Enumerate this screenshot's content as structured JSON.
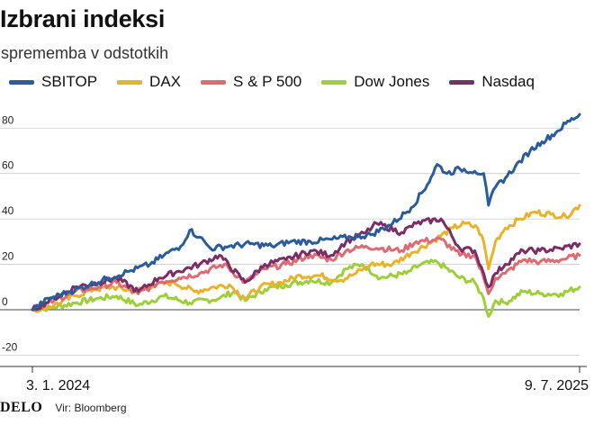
{
  "chart_data": {
    "type": "line",
    "title": "Izbrani indeksi",
    "subtitle": "sprememba v odstotkih",
    "x_range": [
      "3. 1. 2024",
      "9. 7. 2025"
    ],
    "x_tick_labels": [
      "3. 1. 2024",
      "9. 7. 2025"
    ],
    "ylim": [
      -25,
      92
    ],
    "y_ticks": [
      -20,
      0,
      20,
      40,
      60,
      80
    ],
    "grid": true,
    "legend_placement": "top",
    "series": [
      {
        "name": "SBITOP",
        "color": "#2b5c9a",
        "points": [
          [
            "2024-01-03",
            0
          ],
          [
            "2024-01-20",
            5
          ],
          [
            "2024-02-10",
            8
          ],
          [
            "2024-03-01",
            11
          ],
          [
            "2024-03-20",
            14
          ],
          [
            "2024-04-10",
            17
          ],
          [
            "2024-05-01",
            20
          ],
          [
            "2024-05-15",
            24
          ],
          [
            "2024-06-01",
            28
          ],
          [
            "2024-06-10",
            35
          ],
          [
            "2024-06-20",
            32
          ],
          [
            "2024-07-01",
            27
          ],
          [
            "2024-07-20",
            28
          ],
          [
            "2024-08-10",
            29
          ],
          [
            "2024-09-01",
            28
          ],
          [
            "2024-09-20",
            30
          ],
          [
            "2024-10-10",
            30
          ],
          [
            "2024-11-01",
            31
          ],
          [
            "2024-11-20",
            32
          ],
          [
            "2024-12-10",
            33
          ],
          [
            "2025-01-01",
            38
          ],
          [
            "2025-01-20",
            45
          ],
          [
            "2025-02-05",
            55
          ],
          [
            "2025-02-15",
            64
          ],
          [
            "2025-02-25",
            60
          ],
          [
            "2025-03-10",
            62
          ],
          [
            "2025-03-25",
            61
          ],
          [
            "2025-04-03",
            60
          ],
          [
            "2025-04-08",
            46
          ],
          [
            "2025-04-15",
            54
          ],
          [
            "2025-04-25",
            58
          ],
          [
            "2025-05-05",
            63
          ],
          [
            "2025-05-20",
            70
          ],
          [
            "2025-06-01",
            74
          ],
          [
            "2025-06-15",
            78
          ],
          [
            "2025-06-25",
            82
          ],
          [
            "2025-07-09",
            86
          ]
        ]
      },
      {
        "name": "DAX",
        "color": "#e8b32c",
        "points": [
          [
            "2024-01-03",
            0
          ],
          [
            "2024-01-25",
            2
          ],
          [
            "2024-02-15",
            6
          ],
          [
            "2024-03-05",
            9
          ],
          [
            "2024-03-25",
            10
          ],
          [
            "2024-04-15",
            8
          ],
          [
            "2024-05-05",
            11
          ],
          [
            "2024-05-25",
            12
          ],
          [
            "2024-06-15",
            8
          ],
          [
            "2024-07-05",
            10
          ],
          [
            "2024-07-20",
            11
          ],
          [
            "2024-08-05",
            5
          ],
          [
            "2024-08-20",
            10
          ],
          [
            "2024-09-10",
            12
          ],
          [
            "2024-09-30",
            15
          ],
          [
            "2024-10-20",
            15
          ],
          [
            "2024-11-10",
            13
          ],
          [
            "2024-11-25",
            16
          ],
          [
            "2024-12-10",
            20
          ],
          [
            "2025-01-01",
            20
          ],
          [
            "2025-01-20",
            25
          ],
          [
            "2025-02-10",
            30
          ],
          [
            "2025-03-03",
            36
          ],
          [
            "2025-03-15",
            38
          ],
          [
            "2025-03-28",
            36
          ],
          [
            "2025-04-03",
            30
          ],
          [
            "2025-04-08",
            18
          ],
          [
            "2025-04-15",
            30
          ],
          [
            "2025-04-25",
            36
          ],
          [
            "2025-05-10",
            40
          ],
          [
            "2025-05-25",
            43
          ],
          [
            "2025-06-10",
            42
          ],
          [
            "2025-06-25",
            41
          ],
          [
            "2025-07-09",
            46
          ]
        ]
      },
      {
        "name": "S & P 500",
        "color": "#e06a73",
        "points": [
          [
            "2024-01-03",
            0
          ],
          [
            "2024-01-25",
            4
          ],
          [
            "2024-02-15",
            8
          ],
          [
            "2024-03-10",
            10
          ],
          [
            "2024-03-28",
            12
          ],
          [
            "2024-04-19",
            7
          ],
          [
            "2024-05-10",
            12
          ],
          [
            "2024-05-30",
            14
          ],
          [
            "2024-06-20",
            16
          ],
          [
            "2024-07-15",
            20
          ],
          [
            "2024-08-05",
            12
          ],
          [
            "2024-08-25",
            18
          ],
          [
            "2024-09-15",
            20
          ],
          [
            "2024-10-10",
            24
          ],
          [
            "2024-10-31",
            22
          ],
          [
            "2024-11-15",
            26
          ],
          [
            "2024-12-05",
            28
          ],
          [
            "2024-12-20",
            27
          ],
          [
            "2025-01-10",
            26
          ],
          [
            "2025-01-25",
            30
          ],
          [
            "2025-02-19",
            31
          ],
          [
            "2025-03-10",
            24
          ],
          [
            "2025-03-25",
            24
          ],
          [
            "2025-04-03",
            14
          ],
          [
            "2025-04-08",
            7
          ],
          [
            "2025-04-15",
            14
          ],
          [
            "2025-04-25",
            16
          ],
          [
            "2025-05-13",
            22
          ],
          [
            "2025-05-30",
            21
          ],
          [
            "2025-06-20",
            22
          ],
          [
            "2025-07-09",
            24
          ]
        ]
      },
      {
        "name": "Dow Jones",
        "color": "#9ccf3a",
        "points": [
          [
            "2024-01-03",
            0
          ],
          [
            "2024-01-25",
            1
          ],
          [
            "2024-02-15",
            3
          ],
          [
            "2024-03-10",
            5
          ],
          [
            "2024-03-28",
            6
          ],
          [
            "2024-04-19",
            2
          ],
          [
            "2024-05-15",
            6
          ],
          [
            "2024-06-10",
            3
          ],
          [
            "2024-07-10",
            5
          ],
          [
            "2024-07-25",
            8
          ],
          [
            "2024-08-05",
            4
          ],
          [
            "2024-08-25",
            9
          ],
          [
            "2024-09-15",
            11
          ],
          [
            "2024-10-10",
            13
          ],
          [
            "2024-10-31",
            12
          ],
          [
            "2024-11-15",
            18
          ],
          [
            "2024-12-01",
            20
          ],
          [
            "2024-12-20",
            14
          ],
          [
            "2025-01-15",
            16
          ],
          [
            "2025-01-30",
            20
          ],
          [
            "2025-02-15",
            21
          ],
          [
            "2025-03-10",
            14
          ],
          [
            "2025-03-25",
            12
          ],
          [
            "2025-04-03",
            5
          ],
          [
            "2025-04-08",
            -3
          ],
          [
            "2025-04-15",
            4
          ],
          [
            "2025-04-25",
            3
          ],
          [
            "2025-05-13",
            8
          ],
          [
            "2025-05-30",
            7
          ],
          [
            "2025-06-20",
            7
          ],
          [
            "2025-07-09",
            10
          ]
        ]
      },
      {
        "name": "Nasdaq",
        "color": "#7a2e66",
        "points": [
          [
            "2024-01-03",
            0
          ],
          [
            "2024-01-25",
            5
          ],
          [
            "2024-02-15",
            10
          ],
          [
            "2024-03-10",
            12
          ],
          [
            "2024-03-28",
            14
          ],
          [
            "2024-04-19",
            8
          ],
          [
            "2024-05-10",
            14
          ],
          [
            "2024-05-30",
            17
          ],
          [
            "2024-06-20",
            20
          ],
          [
            "2024-07-10",
            24
          ],
          [
            "2024-08-05",
            12
          ],
          [
            "2024-08-25",
            20
          ],
          [
            "2024-09-15",
            22
          ],
          [
            "2024-10-10",
            26
          ],
          [
            "2024-10-31",
            24
          ],
          [
            "2024-11-15",
            30
          ],
          [
            "2024-12-05",
            34
          ],
          [
            "2024-12-16",
            38
          ],
          [
            "2025-01-10",
            34
          ],
          [
            "2025-01-25",
            38
          ],
          [
            "2025-02-19",
            40
          ],
          [
            "2025-03-10",
            27
          ],
          [
            "2025-03-25",
            26
          ],
          [
            "2025-04-03",
            16
          ],
          [
            "2025-04-08",
            10
          ],
          [
            "2025-04-15",
            16
          ],
          [
            "2025-04-25",
            20
          ],
          [
            "2025-05-13",
            26
          ],
          [
            "2025-05-30",
            26
          ],
          [
            "2025-06-20",
            27
          ],
          [
            "2025-07-09",
            29
          ]
        ]
      }
    ]
  },
  "footer": {
    "logo_text": "DELO",
    "source": "Vir: Bloomberg"
  }
}
